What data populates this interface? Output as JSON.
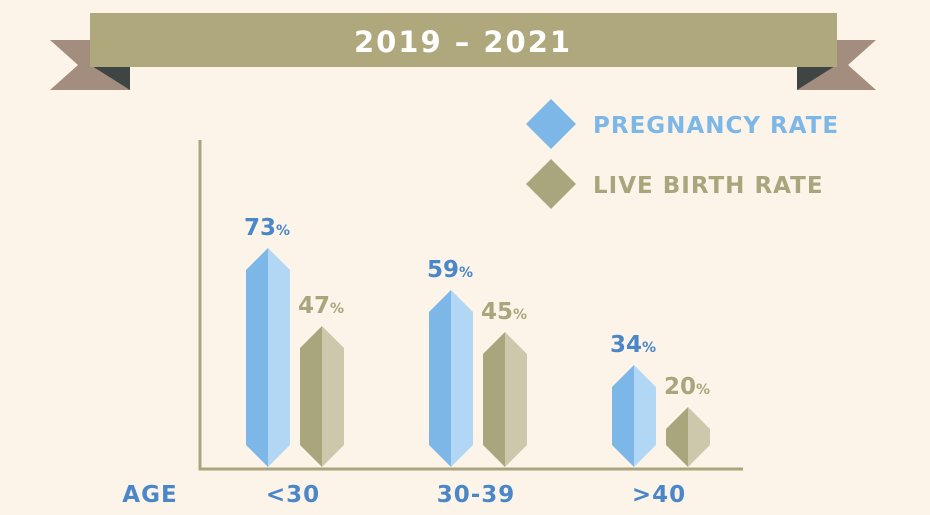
{
  "chart_data": {
    "type": "bar",
    "title": "2019 – 2021",
    "xlabel": "AGE",
    "ylabel": "",
    "categories": [
      "<30",
      "30-39",
      ">40"
    ],
    "series": [
      {
        "name": "PREGNANCY RATE",
        "values": [
          73,
          59,
          34
        ],
        "color": "#7db7e8"
      },
      {
        "name": "LIVE BIRTH RATE",
        "values": [
          47,
          45,
          20
        ],
        "color": "#a9a57c"
      }
    ],
    "value_suffix": "%",
    "ylim": [
      0,
      100
    ],
    "legend_position": "top-right",
    "grid": false
  },
  "colors": {
    "background": "#fcf4e9",
    "banner": "#aea87c",
    "ribbon": "#a38d7f",
    "ribbon_fold": "#3f4544",
    "axis": "#a9a57c",
    "blue_text": "#4a86c8",
    "olive_text": "#a9a57c"
  }
}
